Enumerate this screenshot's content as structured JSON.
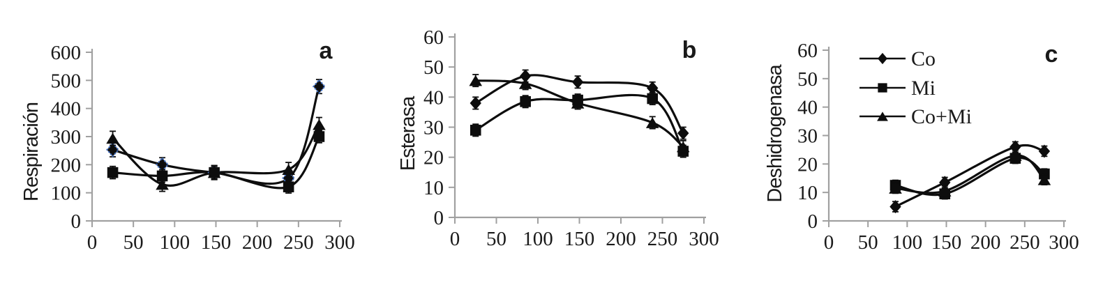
{
  "figure": {
    "background": "#ffffff",
    "axis_color": "#a0a0a0",
    "line_color": "#0d0d0d",
    "text_color": "#1a1a1a",
    "selected_marker_outline_color": "#4472c4"
  },
  "chart_data": [
    {
      "id": "a",
      "type": "line",
      "panel_label": "a",
      "title": "",
      "xlabel": "",
      "ylabel": "Respiración",
      "xlim": [
        0,
        300
      ],
      "xticks": [
        0,
        50,
        100,
        150,
        200,
        250,
        300
      ],
      "ylim": [
        0,
        600
      ],
      "yticks": [
        0,
        100,
        200,
        300,
        400,
        500,
        600
      ],
      "grid": false,
      "x": [
        25,
        85,
        148,
        238,
        275
      ],
      "series": [
        {
          "name": "Co",
          "marker": "diamond",
          "values": [
            253,
            200,
            172,
            152,
            478
          ],
          "error": 25,
          "marker_outline": "#4472c4"
        },
        {
          "name": "Mi",
          "marker": "square",
          "values": [
            172,
            160,
            172,
            121,
            300
          ],
          "error": 22
        },
        {
          "name": "Co+Mi",
          "marker": "triangle",
          "values": [
            294,
            130,
            172,
            183,
            343
          ],
          "error": 25
        }
      ],
      "legend": null
    },
    {
      "id": "b",
      "type": "line",
      "panel_label": "b",
      "title": "",
      "xlabel": "",
      "ylabel": "Esterasa",
      "xlim": [
        0,
        300
      ],
      "xticks": [
        0,
        50,
        100,
        150,
        200,
        250,
        300
      ],
      "ylim": [
        0,
        60
      ],
      "yticks": [
        0,
        10,
        20,
        30,
        40,
        50,
        60
      ],
      "grid": false,
      "x": [
        25,
        85,
        148,
        238,
        275
      ],
      "series": [
        {
          "name": "Co",
          "marker": "diamond",
          "values": [
            38,
            47,
            45,
            43,
            28
          ],
          "error": 2
        },
        {
          "name": "Mi",
          "marker": "square",
          "values": [
            29,
            38.5,
            39,
            39.5,
            22
          ],
          "error": 2
        },
        {
          "name": "Co+Mi",
          "marker": "triangle",
          "values": [
            45.5,
            44.5,
            38,
            31.5,
            23.5
          ],
          "error": 2
        }
      ],
      "legend": null
    },
    {
      "id": "c",
      "type": "line",
      "panel_label": "c",
      "title": "",
      "xlabel": "",
      "ylabel": "Deshidrogenasa",
      "xlim": [
        0,
        300
      ],
      "xticks": [
        0,
        50,
        100,
        150,
        200,
        250,
        300
      ],
      "ylim": [
        0,
        60
      ],
      "yticks": [
        0,
        10,
        20,
        30,
        40,
        50,
        60
      ],
      "grid": false,
      "x": [
        85,
        148,
        238,
        275
      ],
      "series": [
        {
          "name": "Co",
          "marker": "diamond",
          "values": [
            5,
            13.5,
            26,
            24.5
          ],
          "error": 1.8
        },
        {
          "name": "Mi",
          "marker": "square",
          "values": [
            12.5,
            9.5,
            22,
            16.5
          ],
          "error": 1.8
        },
        {
          "name": "Co+Mi",
          "marker": "triangle",
          "values": [
            11.5,
            10.5,
            23,
            14.5
          ],
          "error": 1.8
        }
      ],
      "legend": {
        "position": "top-left-inside",
        "entries": [
          "Co",
          "Mi",
          "Co+Mi"
        ]
      }
    }
  ]
}
